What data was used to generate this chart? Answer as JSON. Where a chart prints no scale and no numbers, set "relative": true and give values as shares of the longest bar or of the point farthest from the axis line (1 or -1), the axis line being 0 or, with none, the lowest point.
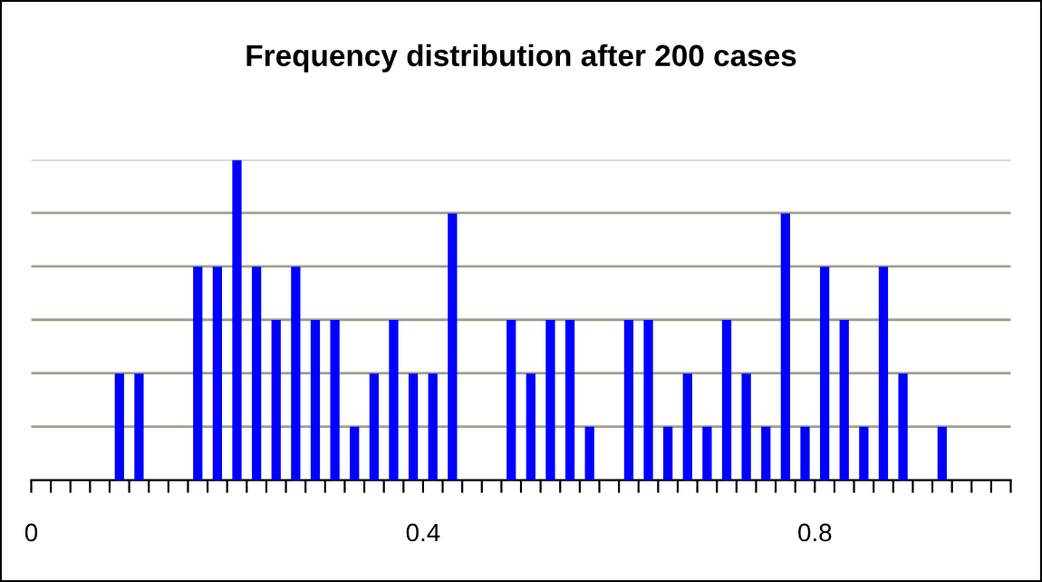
{
  "chart_data": {
    "type": "bar",
    "title": "Frequency distribution after 200 cases",
    "relative": true,
    "x": [
      0.09,
      0.11,
      0.17,
      0.19,
      0.21,
      0.23,
      0.25,
      0.27,
      0.29,
      0.31,
      0.33,
      0.35,
      0.37,
      0.39,
      0.41,
      0.43,
      0.49,
      0.51,
      0.53,
      0.55,
      0.57,
      0.61,
      0.63,
      0.65,
      0.67,
      0.69,
      0.71,
      0.73,
      0.75,
      0.77,
      0.79,
      0.81,
      0.83,
      0.85,
      0.87,
      0.89,
      0.93
    ],
    "values": [
      0.333,
      0.333,
      0.667,
      0.667,
      1,
      0.667,
      0.5,
      0.667,
      0.5,
      0.5,
      0.167,
      0.333,
      0.5,
      0.333,
      0.333,
      0.833,
      0.5,
      0.333,
      0.5,
      0.5,
      0.167,
      0.5,
      0.5,
      0.167,
      0.333,
      0.167,
      0.5,
      0.333,
      0.167,
      0.833,
      0.167,
      0.667,
      0.5,
      0.167,
      0.667,
      0.333,
      0.167
    ],
    "color": "#0000ff",
    "grid": "y",
    "xlim": [
      0,
      1
    ],
    "xticks": [
      0,
      {
        "value": 0.02,
        "label": null
      },
      {
        "value": 0.04,
        "label": null
      },
      {
        "value": 0.06,
        "label": null
      },
      {
        "value": 0.08,
        "label": null
      },
      {
        "value": 0.1,
        "label": null
      },
      {
        "value": 0.12,
        "label": null
      },
      {
        "value": 0.14,
        "label": null
      },
      {
        "value": 0.16,
        "label": null
      },
      {
        "value": 0.18,
        "label": null
      },
      {
        "value": 0.2,
        "label": null
      },
      {
        "value": 0.22,
        "label": null
      },
      {
        "value": 0.24,
        "label": null
      },
      {
        "value": 0.26,
        "label": null
      },
      {
        "value": 0.28,
        "label": null
      },
      {
        "value": 0.3,
        "label": null
      },
      {
        "value": 0.32,
        "label": null
      },
      {
        "value": 0.34,
        "label": null
      },
      {
        "value": 0.36,
        "label": null
      },
      {
        "value": 0.38,
        "label": null
      },
      0.4,
      {
        "value": 0.42,
        "label": null
      },
      {
        "value": 0.44,
        "label": null
      },
      {
        "value": 0.46,
        "label": null
      },
      {
        "value": 0.48,
        "label": null
      },
      {
        "value": 0.5,
        "label": null
      },
      {
        "value": 0.52,
        "label": null
      },
      {
        "value": 0.54,
        "label": null
      },
      {
        "value": 0.56,
        "label": null
      },
      {
        "value": 0.58,
        "label": null
      },
      {
        "value": 0.6,
        "label": null
      },
      {
        "value": 0.62,
        "label": null
      },
      {
        "value": 0.64,
        "label": null
      },
      {
        "value": 0.66,
        "label": null
      },
      {
        "value": 0.68,
        "label": null
      },
      {
        "value": 0.7,
        "label": null
      },
      {
        "value": 0.72,
        "label": null
      },
      {
        "value": 0.74,
        "label": null
      },
      {
        "value": 0.76,
        "label": null
      },
      {
        "value": 0.78,
        "label": null
      },
      0.8,
      {
        "value": 0.82,
        "label": null
      },
      {
        "value": 0.84,
        "label": null
      },
      {
        "value": 0.86,
        "label": null
      },
      {
        "value": 0.88,
        "label": null
      },
      {
        "value": 0.9,
        "label": null
      },
      {
        "value": 0.92,
        "label": null
      },
      {
        "value": 0.94,
        "label": null
      },
      {
        "value": 0.96,
        "label": null
      },
      {
        "value": 0.98,
        "label": null
      },
      {
        "value": 1,
        "label": null
      }
    ]
  }
}
